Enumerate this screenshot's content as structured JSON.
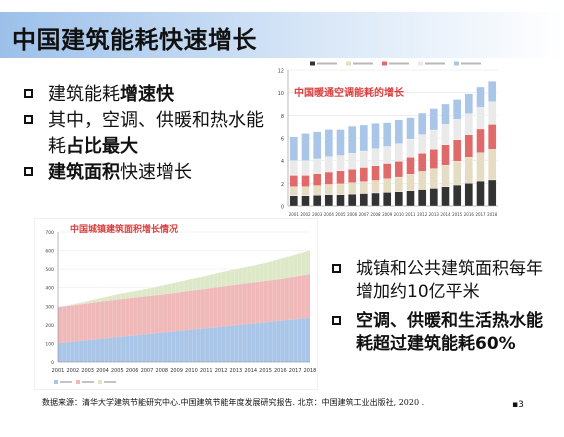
{
  "slide": {
    "title": "中国建筑能耗快速增长",
    "bullets_left": [
      {
        "plain": "建筑能耗",
        "bold": "增速快",
        "tail": ""
      },
      {
        "plain": "其中，空调、供暖和热水能耗",
        "bold": "占比最大",
        "tail": ""
      },
      {
        "plain": "",
        "bold": "建筑面积",
        "tail": "快速增长"
      }
    ],
    "bullets_right": [
      {
        "text": "城镇和公共建筑面积每年增加约10亿平米",
        "bold": false
      },
      {
        "text": "空调、供暖和生活热水能耗超过建筑能耗60%",
        "bold": true
      }
    ],
    "footer": "数据来源：清华大学建筑节能研究中心.中国建筑节能年度发展研究报告. 北京：中国建筑工业出版社, 2020 .",
    "page_number": "▪3"
  },
  "colors": {
    "title_bar": "#9cc0ea",
    "heating": "#a9c5e8",
    "public": "#eaeaea",
    "rural": "#e06a6a",
    "water": "#e6dcc4",
    "other": "#333333",
    "area_urban": "#a9c5e8",
    "area_public": "#f0b8b8",
    "area_rural": "#dde8c8",
    "chart_title_red": "#d94040"
  },
  "chart_data": [
    {
      "type": "bar",
      "title": "中国暖通空调能耗的增长",
      "stacked": true,
      "ylim": [
        0,
        12
      ],
      "yticks": [
        0,
        2,
        4,
        6,
        8,
        10,
        12
      ],
      "categories": [
        "2001",
        "2002",
        "2003",
        "2004",
        "2005",
        "2006",
        "2007",
        "2008",
        "2009",
        "2010",
        "2011",
        "2012",
        "2013",
        "2014",
        "2015",
        "2016",
        "2017",
        "2018"
      ],
      "series": [
        {
          "color_key": "other",
          "values": [
            0.9,
            0.9,
            0.95,
            1.0,
            1.0,
            1.05,
            1.1,
            1.15,
            1.2,
            1.25,
            1.35,
            1.45,
            1.55,
            1.7,
            1.85,
            2.0,
            2.2,
            2.3
          ]
        },
        {
          "color_key": "water",
          "values": [
            0.8,
            0.8,
            0.85,
            0.9,
            0.95,
            1.0,
            1.05,
            1.1,
            1.2,
            1.3,
            1.45,
            1.6,
            1.75,
            1.9,
            2.1,
            2.3,
            2.5,
            2.7
          ]
        },
        {
          "color_key": "rural",
          "values": [
            1.0,
            1.0,
            1.05,
            1.1,
            1.15,
            1.2,
            1.25,
            1.3,
            1.35,
            1.4,
            1.5,
            1.6,
            1.7,
            1.8,
            1.9,
            2.0,
            2.1,
            2.2
          ]
        },
        {
          "color_key": "public",
          "values": [
            1.3,
            1.3,
            1.3,
            1.35,
            1.35,
            1.4,
            1.45,
            1.5,
            1.5,
            1.55,
            1.6,
            1.65,
            1.7,
            1.8,
            1.8,
            1.85,
            1.9,
            2.0
          ]
        },
        {
          "color_key": "heating",
          "values": [
            2.1,
            2.4,
            2.4,
            2.4,
            2.3,
            2.4,
            2.3,
            2.25,
            2.1,
            2.1,
            1.9,
            1.9,
            1.9,
            1.8,
            1.75,
            1.75,
            1.8,
            1.8
          ]
        }
      ],
      "legend_placement": "top"
    },
    {
      "type": "area",
      "title": "中国城镇建筑面积增长情况",
      "stacked": true,
      "ylim": [
        0,
        700
      ],
      "yticks": [
        0,
        100,
        200,
        300,
        400,
        500,
        600,
        700
      ],
      "categories": [
        "2001",
        "2002",
        "2003",
        "2004",
        "2005",
        "2006",
        "2007",
        "2008",
        "2009",
        "2010",
        "2011",
        "2012",
        "2013",
        "2014",
        "2015",
        "2016",
        "2017",
        "2018"
      ],
      "series": [
        {
          "color_key": "area_urban",
          "values": [
            100,
            110,
            118,
            126,
            134,
            142,
            150,
            158,
            166,
            174,
            182,
            190,
            198,
            206,
            214,
            222,
            230,
            238
          ]
        },
        {
          "color_key": "area_public",
          "values": [
            195,
            195,
            198,
            200,
            202,
            203,
            204,
            205,
            207,
            210,
            212,
            215,
            218,
            220,
            222,
            225,
            230,
            235
          ]
        },
        {
          "color_key": "area_rural",
          "values": [
            0,
            5,
            12,
            20,
            28,
            34,
            40,
            48,
            56,
            63,
            70,
            78,
            84,
            90,
            98,
            108,
            118,
            128
          ]
        }
      ],
      "legend_placement": "bottom"
    }
  ]
}
